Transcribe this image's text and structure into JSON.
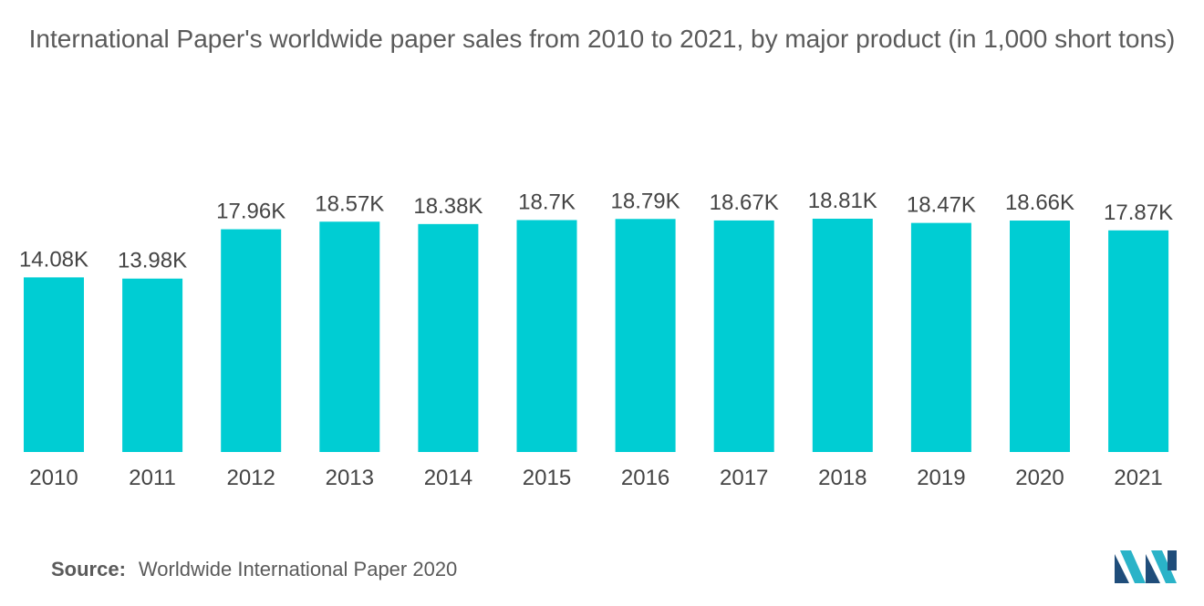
{
  "chart_data": {
    "type": "bar",
    "title": "International Paper's worldwide paper sales from 2010 to 2021, by major product (in 1,000 short tons)",
    "xlabel": "",
    "ylabel": "",
    "categories": [
      "2010",
      "2011",
      "2012",
      "2013",
      "2014",
      "2015",
      "2016",
      "2017",
      "2018",
      "2019",
      "2020",
      "2021"
    ],
    "values": [
      14080,
      13980,
      17960,
      18570,
      18380,
      18700,
      18790,
      18670,
      18810,
      18470,
      18660,
      17870
    ],
    "value_labels": [
      "14.08K",
      "13.98K",
      "17.96K",
      "18.57K",
      "18.38K",
      "18.7K",
      "18.79K",
      "18.67K",
      "18.81K",
      "18.47K",
      "18.66K",
      "17.87K"
    ],
    "ylim": [
      0,
      18810
    ],
    "grid": false,
    "legend": "none",
    "bar_color": "#00cdd3"
  },
  "source": {
    "label": "Source:",
    "text": "Worldwide International Paper 2020"
  },
  "colors": {
    "title": "#5a5a5a",
    "text": "#444444",
    "logo_dark": "#1f4d7a",
    "logo_light": "#2ab3c8"
  }
}
